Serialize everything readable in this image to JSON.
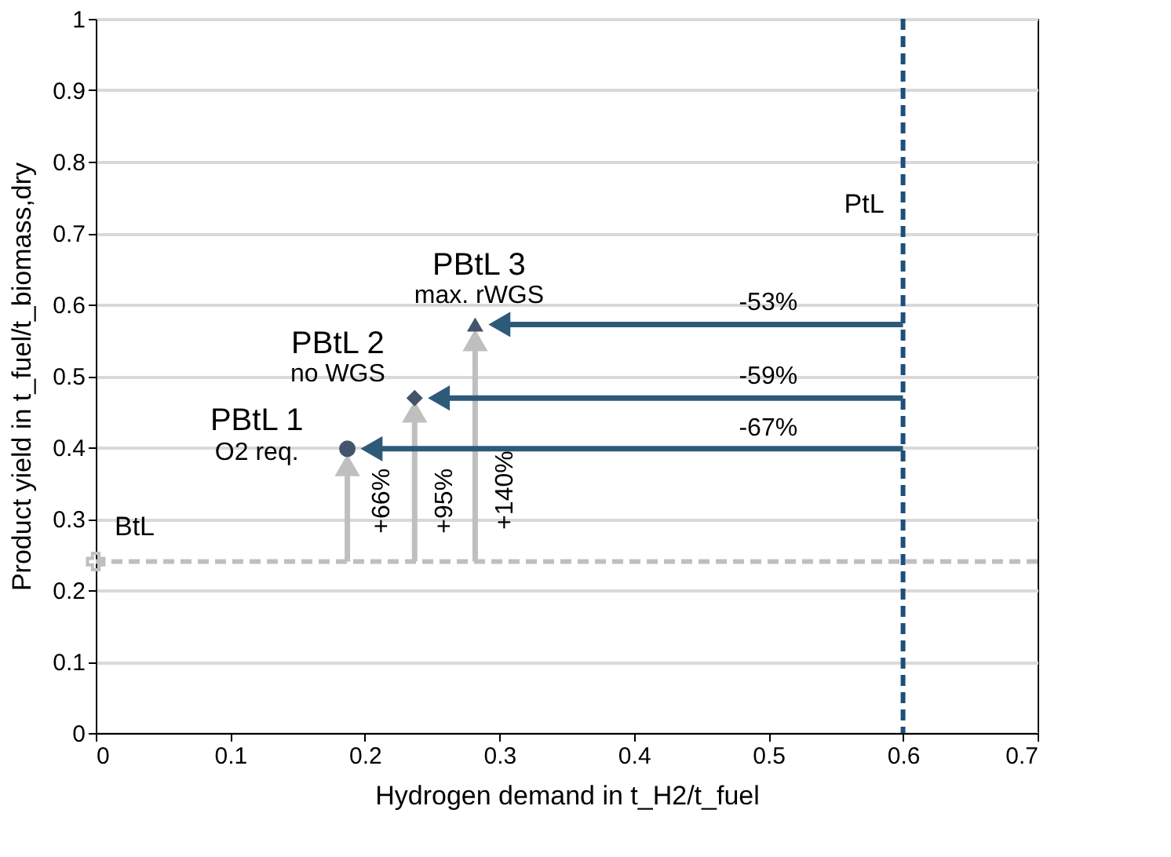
{
  "chart_data": {
    "type": "scatter",
    "xlabel": "Hydrogen demand in t_H2/t_fuel",
    "ylabel": "Product yield in t_fuel/t_biomass,dry",
    "xlim": [
      0,
      0.7
    ],
    "xticks": [
      0,
      0.1,
      0.2,
      0.3,
      0.4,
      0.5,
      0.6,
      0.7
    ],
    "ylim": [
      0,
      1
    ],
    "yticks": [
      0,
      0.1,
      0.2,
      0.3,
      0.4,
      0.5,
      0.6,
      0.7,
      0.8,
      0.9,
      1
    ],
    "grid": "y",
    "series": [
      {
        "color": "#bfbfbf",
        "marker": "cross",
        "x": [
          0
        ],
        "values": [
          0.24
        ]
      },
      {
        "type": "line",
        "color": "#bfbfbf",
        "marker": "triangle",
        "x": [
          0.187,
          0.187
        ],
        "values": [
          0.24,
          0.375
        ]
      },
      {
        "type": "line",
        "color": "#bfbfbf",
        "marker": "triangle",
        "x": [
          0.237,
          0.237
        ],
        "values": [
          0.24,
          0.45
        ]
      },
      {
        "type": "line",
        "color": "#bfbfbf",
        "marker": "triangle",
        "x": [
          0.282,
          0.282
        ],
        "values": [
          0.24,
          0.55
        ]
      },
      {
        "type": "line",
        "color": "#2e5a7a",
        "marker": "triangle",
        "x": [
          0.6,
          0.205
        ],
        "values": [
          0.398,
          0.398
        ]
      },
      {
        "type": "line",
        "color": "#2e5a7a",
        "marker": "triangle",
        "x": [
          0.6,
          0.255
        ],
        "values": [
          0.469,
          0.469
        ]
      },
      {
        "type": "line",
        "color": "#2e5a7a",
        "marker": "triangle",
        "x": [
          0.6,
          0.3
        ],
        "values": [
          0.572,
          0.572
        ]
      },
      {
        "color": "#44546a",
        "marker": "circle",
        "x": [
          0.187
        ],
        "values": [
          0.398
        ]
      },
      {
        "color": "#44546a",
        "marker": "diamond",
        "x": [
          0.237
        ],
        "values": [
          0.469
        ]
      },
      {
        "color": "#44546a",
        "marker": "triangle",
        "x": [
          0.282
        ],
        "values": [
          0.572
        ]
      }
    ],
    "ref_lines": [
      {
        "axis": "x",
        "value": 0.6,
        "label": "PtL",
        "color": "#1f4e79",
        "line_style": "dashed"
      },
      {
        "axis": "y",
        "value": 0.24,
        "label": "BtL",
        "color": "#bfbfbf",
        "line_style": "dashed"
      }
    ],
    "annotations": [
      "PBtL 1",
      "O2 req.",
      "PBtL 2",
      "no WGS",
      "PBtL 3",
      "max. rWGS",
      "-67%",
      "-59%",
      "-53%",
      "+66%",
      "+95%",
      "+140%"
    ]
  }
}
